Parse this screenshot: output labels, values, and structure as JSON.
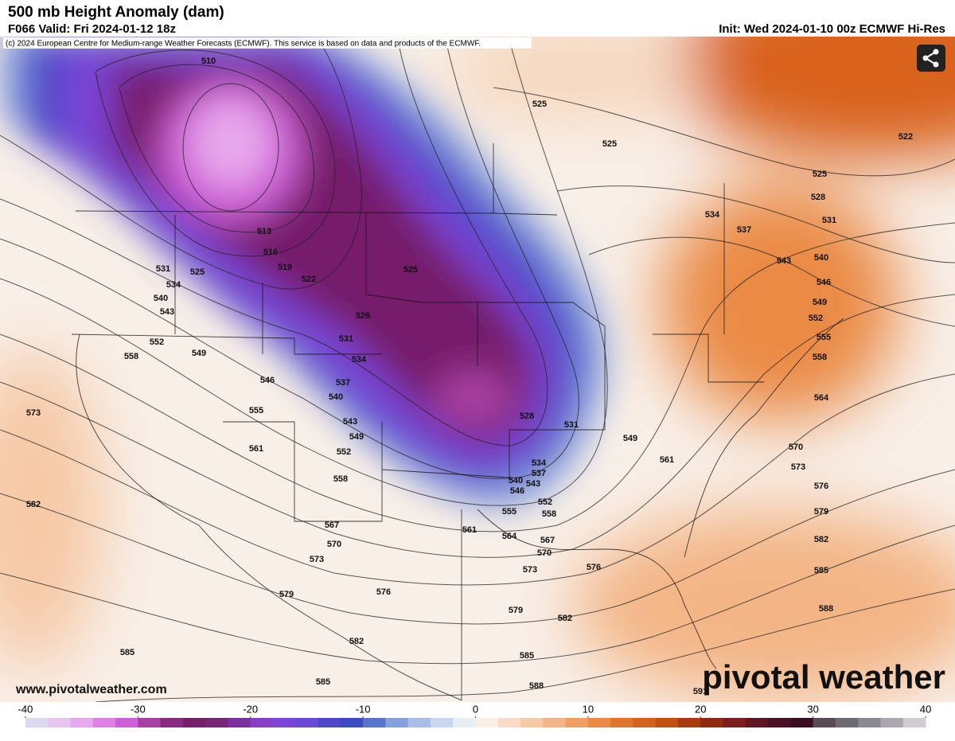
{
  "header": {
    "title": "500 mb Height Anomaly (dam)",
    "valid": "F066 Valid: Fri 2024-01-12 18z",
    "init": "Init: Wed 2024-01-10 00z ECMWF Hi-Res"
  },
  "copyright": "(c) 2024 European Centre for Medium-range Weather Forecasts (ECMWF). This service is based on data and products of the ECMWF.",
  "website": "www.pivotalweather.com",
  "logo": "pivotal weather",
  "contour_labels": [
    510,
    513,
    516,
    519,
    522,
    525,
    525,
    525,
    525,
    525,
    522,
    528,
    531,
    534,
    537,
    543,
    540,
    546,
    549,
    552,
    555,
    558,
    564,
    570,
    573,
    576,
    579,
    582,
    585,
    588,
    531,
    534,
    540,
    543,
    552,
    558,
    549,
    546,
    555,
    561,
    528,
    531,
    534,
    537,
    540,
    543,
    549,
    552,
    558,
    567,
    570,
    573,
    579,
    576,
    582,
    585,
    585,
    582,
    573,
    528,
    531,
    534,
    537,
    540,
    543,
    546,
    552,
    555,
    558,
    561,
    564,
    567,
    570,
    573,
    576,
    579,
    582,
    585,
    588,
    591,
    549,
    561
  ],
  "colorbar": {
    "lim": [
      -40,
      40
    ],
    "ticks": [
      -40,
      -30,
      -20,
      -10,
      0,
      10,
      20,
      30,
      40
    ],
    "colors": [
      "#dcd9ef",
      "#e4c6ee",
      "#e8a9ec",
      "#e07fe6",
      "#cf5fd8",
      "#a83fa3",
      "#8a2a80",
      "#761f6b",
      "#7a2677",
      "#7d31a0",
      "#8640c6",
      "#7b45d8",
      "#6a49d8",
      "#4e48c8",
      "#3e4bc0",
      "#5a73cc",
      "#86a0dc",
      "#a9bde6",
      "#c8d6ef",
      "#e6edf6",
      "#fbeee4",
      "#f9dcc6",
      "#f6c9a6",
      "#f3b585",
      "#ef9f62",
      "#ea8a45",
      "#e0762c",
      "#d4621a",
      "#c24e10",
      "#a83a0c",
      "#8e2a10",
      "#7a1e1e",
      "#5f1522",
      "#4a1024",
      "#3a0e22",
      "#5a4a55",
      "#6e6a72",
      "#8a8890",
      "#aaa8ae",
      "#cfcdd0"
    ]
  }
}
